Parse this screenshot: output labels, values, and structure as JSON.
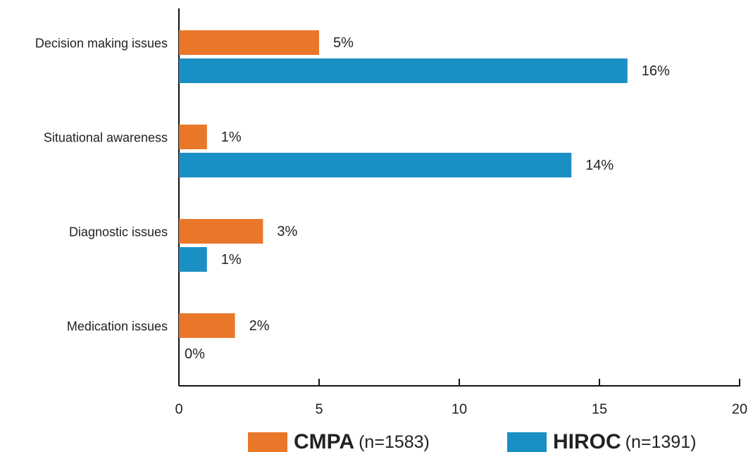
{
  "chart_data": {
    "type": "bar",
    "orientation": "horizontal",
    "categories": [
      "Decision making issues",
      "Situational awareness",
      "Diagnostic issues",
      "Medication issues"
    ],
    "series": [
      {
        "name": "CMPA",
        "note": "(n=1583)",
        "color": "#e8772a",
        "values": [
          5,
          1,
          3,
          2
        ],
        "value_labels": [
          "5%",
          "1%",
          "3%",
          "2%"
        ]
      },
      {
        "name": "HIROC",
        "note": "(n=1391)",
        "color": "#1a8fc4",
        "values": [
          16,
          14,
          1,
          0
        ],
        "value_labels": [
          "16%",
          "14%",
          "1%",
          "0%"
        ]
      }
    ],
    "xlim": [
      0,
      20
    ],
    "xticks": [
      0,
      5,
      10,
      15,
      20
    ],
    "legend": "bottom"
  }
}
